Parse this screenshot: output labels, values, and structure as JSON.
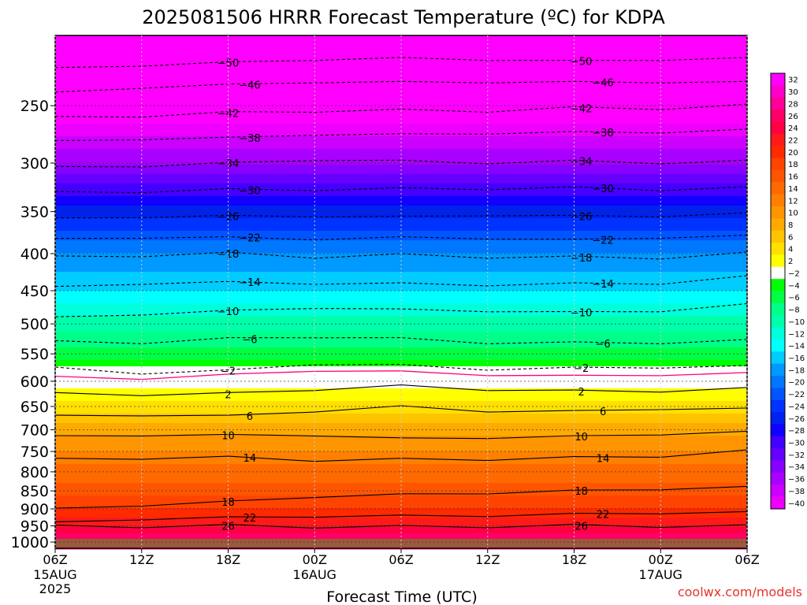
{
  "chart_data": {
    "type": "heatmap",
    "title": "2025081506 HRRR Forecast Temperature (ºC) for KDPA",
    "xlabel": "Forecast Time (UTC)",
    "ylabel": "",
    "x_ticks": [
      {
        "hour": 0,
        "label": "06Z",
        "sub": "15AUG",
        "sub2": "2025"
      },
      {
        "hour": 6,
        "label": "12Z",
        "sub": "",
        "sub2": ""
      },
      {
        "hour": 12,
        "label": "18Z",
        "sub": "",
        "sub2": ""
      },
      {
        "hour": 18,
        "label": "00Z",
        "sub": "16AUG",
        "sub2": ""
      },
      {
        "hour": 24,
        "label": "06Z",
        "sub": "",
        "sub2": ""
      },
      {
        "hour": 30,
        "label": "12Z",
        "sub": "",
        "sub2": ""
      },
      {
        "hour": 36,
        "label": "18Z",
        "sub": "",
        "sub2": ""
      },
      {
        "hour": 42,
        "label": "00Z",
        "sub": "17AUG",
        "sub2": ""
      },
      {
        "hour": 48,
        "label": "06Z",
        "sub": "",
        "sub2": ""
      }
    ],
    "xlim_hours": [
      0,
      48
    ],
    "y_ticks": [
      250,
      300,
      350,
      400,
      450,
      500,
      550,
      600,
      650,
      700,
      750,
      800,
      850,
      900,
      950,
      1000
    ],
    "ylim_hpa": [
      200,
      1020
    ],
    "y_scale": "log-pressure (inverted)",
    "ground_level_hpa": 1000,
    "ground_color": "#9c5a3c",
    "colorbar": {
      "levels": [
        32,
        30,
        28,
        26,
        24,
        22,
        20,
        18,
        16,
        14,
        12,
        10,
        8,
        6,
        4,
        2,
        -2,
        -4,
        -6,
        -8,
        -10,
        -12,
        -14,
        -16,
        -18,
        -20,
        -22,
        -24,
        -26,
        -28,
        -30,
        -32,
        -34,
        -36,
        -38,
        -40
      ],
      "labels": [
        "32",
        "30",
        "28",
        "26",
        "24",
        "22",
        "20",
        "18",
        "16",
        "14",
        "12",
        "10",
        "8",
        "6",
        "4",
        "2",
        "−2",
        "−4",
        "−6",
        "−8",
        "−10",
        "−12",
        "−14",
        "−16",
        "−18",
        "−20",
        "−22",
        "−24",
        "−26",
        "−28",
        "−30",
        "−32",
        "−34",
        "−36",
        "−38",
        "−40"
      ]
    },
    "temperature_profile": [
      {
        "hpa": 1000,
        "t": 28
      },
      {
        "hpa": 950,
        "t": 24
      },
      {
        "hpa": 900,
        "t": 20
      },
      {
        "hpa": 850,
        "t": 17
      },
      {
        "hpa": 800,
        "t": 15
      },
      {
        "hpa": 750,
        "t": 12
      },
      {
        "hpa": 700,
        "t": 9
      },
      {
        "hpa": 650,
        "t": 5
      },
      {
        "hpa": 600,
        "t": 1
      },
      {
        "hpa": 550,
        "t": -5
      },
      {
        "hpa": 500,
        "t": -9
      },
      {
        "hpa": 450,
        "t": -14
      },
      {
        "hpa": 400,
        "t": -18
      },
      {
        "hpa": 350,
        "t": -25
      },
      {
        "hpa": 300,
        "t": -34
      },
      {
        "hpa": 250,
        "t": -43
      },
      {
        "hpa": 200,
        "t": -52
      }
    ],
    "contours": [
      {
        "value": 26,
        "label": "26",
        "style": "solid",
        "hpa": [
          952,
          951,
          950,
          952,
          953,
          951,
          950,
          950,
          951
        ]
      },
      {
        "value": 22,
        "label": "22",
        "style": "solid",
        "hpa": [
          940,
          930,
          925,
          922,
          920,
          920,
          915,
          912,
          910
        ]
      },
      {
        "value": 18,
        "label": "18",
        "style": "solid",
        "hpa": [
          900,
          890,
          880,
          866,
          860,
          856,
          850,
          845,
          840
        ]
      },
      {
        "value": 14,
        "label": "14",
        "style": "solid",
        "hpa": [
          770,
          765,
          765,
          770,
          770,
          768,
          766,
          760,
          750
        ]
      },
      {
        "value": 10,
        "label": "10",
        "style": "solid",
        "hpa": [
          715,
          712,
          712,
          712,
          720,
          718,
          715,
          710,
          705
        ]
      },
      {
        "value": 6,
        "label": "6",
        "style": "solid",
        "hpa": [
          670,
          668,
          670,
          660,
          650,
          660,
          660,
          655,
          655
        ]
      },
      {
        "value": 2,
        "label": "2",
        "style": "solid",
        "hpa": [
          625,
          625,
          625,
          615,
          610,
          615,
          620,
          618,
          615
        ]
      },
      {
        "value": 0,
        "label": "",
        "style": "magenta",
        "hpa": [
          592,
          595,
          588,
          580,
          582,
          588,
          590,
          588,
          585
        ]
      },
      {
        "value": -2,
        "label": "2",
        "style": "dashed",
        "hpa": [
          575,
          585,
          580,
          568,
          570,
          578,
          575,
          574,
          572
        ]
      },
      {
        "value": -6,
        "label": "6",
        "style": "dashed",
        "hpa": [
          530,
          530,
          525,
          520,
          525,
          530,
          532,
          530,
          528
        ]
      },
      {
        "value": -10,
        "label": "10",
        "style": "dashed",
        "hpa": [
          490,
          485,
          480,
          475,
          478,
          480,
          482,
          480,
          470
        ]
      },
      {
        "value": -14,
        "label": "14",
        "style": "dashed",
        "hpa": [
          445,
          440,
          438,
          440,
          440,
          442,
          440,
          440,
          430
        ]
      },
      {
        "value": -18,
        "label": "18",
        "style": "dashed",
        "hpa": [
          405,
          402,
          400,
          404,
          402,
          404,
          405,
          405,
          400
        ]
      },
      {
        "value": -22,
        "label": "22",
        "style": "dashed",
        "hpa": [
          382,
          380,
          380,
          382,
          380,
          381,
          383,
          380,
          378
        ]
      },
      {
        "value": -26,
        "label": "26",
        "style": "dashed",
        "hpa": [
          358,
          356,
          355,
          355,
          356,
          354,
          355,
          355,
          352
        ]
      },
      {
        "value": -30,
        "label": "30",
        "style": "dashed",
        "hpa": [
          330,
          328,
          327,
          326,
          326,
          325,
          325,
          326,
          325
        ]
      },
      {
        "value": -34,
        "label": "34",
        "style": "dashed",
        "hpa": [
          304,
          303,
          300,
          297,
          298,
          300,
          298,
          300,
          298
        ]
      },
      {
        "value": -38,
        "label": "38",
        "style": "dashed",
        "hpa": [
          280,
          278,
          277,
          274,
          274,
          273,
          272,
          272,
          270
        ]
      },
      {
        "value": -42,
        "label": "42",
        "style": "dashed",
        "hpa": [
          260,
          258,
          256,
          254,
          254,
          254,
          252,
          252,
          250
        ]
      },
      {
        "value": -46,
        "label": "46",
        "style": "dashed",
        "hpa": [
          240,
          236,
          234,
          232,
          232,
          232,
          232,
          232,
          232
        ]
      },
      {
        "value": -50,
        "label": "50",
        "style": "dashed",
        "hpa": [
          222,
          220,
          218,
          216,
          215,
          216,
          217,
          216,
          215
        ]
      }
    ],
    "contour_hours": [
      0,
      6,
      12,
      18,
      24,
      30,
      36,
      42,
      48
    ],
    "grid": true
  },
  "watermark": "coolwx.com/models"
}
